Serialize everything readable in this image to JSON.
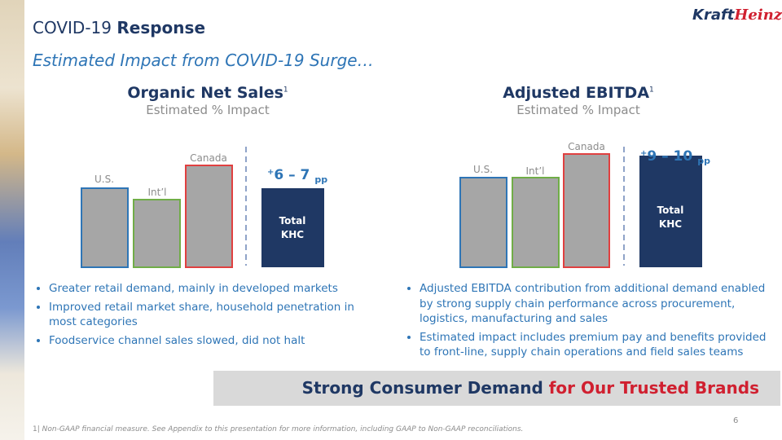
{
  "header": {
    "title_plain": "COVID-19",
    "title_bold": "Response",
    "subtitle": "Estimated Impact from COVID-19 Surge…",
    "logo_a": "Kraft",
    "logo_b": "Heinz"
  },
  "left": {
    "heading": "Organic Net Sales",
    "heading_ref": "1",
    "subheading": "Estimated % Impact",
    "bars": [
      "U.S.",
      "Int’l",
      "Canada"
    ],
    "total_label": [
      "Total",
      "KHC"
    ],
    "impact": {
      "sign": "+",
      "range": "6 – 7",
      "unit": "pp"
    },
    "bullets": [
      "Greater retail demand, mainly in developed markets",
      "Improved retail market share, household penetration in most categories",
      "Foodservice channel sales slowed, did not halt"
    ]
  },
  "right": {
    "heading": "Adjusted EBITDA",
    "heading_ref": "1",
    "subheading": "Estimated % Impact",
    "bars": [
      "U.S.",
      "Int’l",
      "Canada"
    ],
    "total_label": [
      "Total",
      "KHC"
    ],
    "impact": {
      "sign": "+",
      "range": "9 – 10",
      "unit": "pp"
    },
    "bullets": [
      "Adjusted EBITDA contribution from additional demand enabled by strong supply chain performance across procurement, logistics, manufacturing and sales",
      "Estimated impact includes premium pay and benefits provided to front-line, supply chain operations and field sales teams"
    ]
  },
  "banner": {
    "part1": "Strong Consumer Demand",
    "part2": "for Our Trusted Brands"
  },
  "footer": {
    "ref": "1|",
    "note": "Non-GAAP financial measure. See Appendix to this presentation for more information, including GAAP to Non-GAAP reconciliations.",
    "page": "6"
  }
}
